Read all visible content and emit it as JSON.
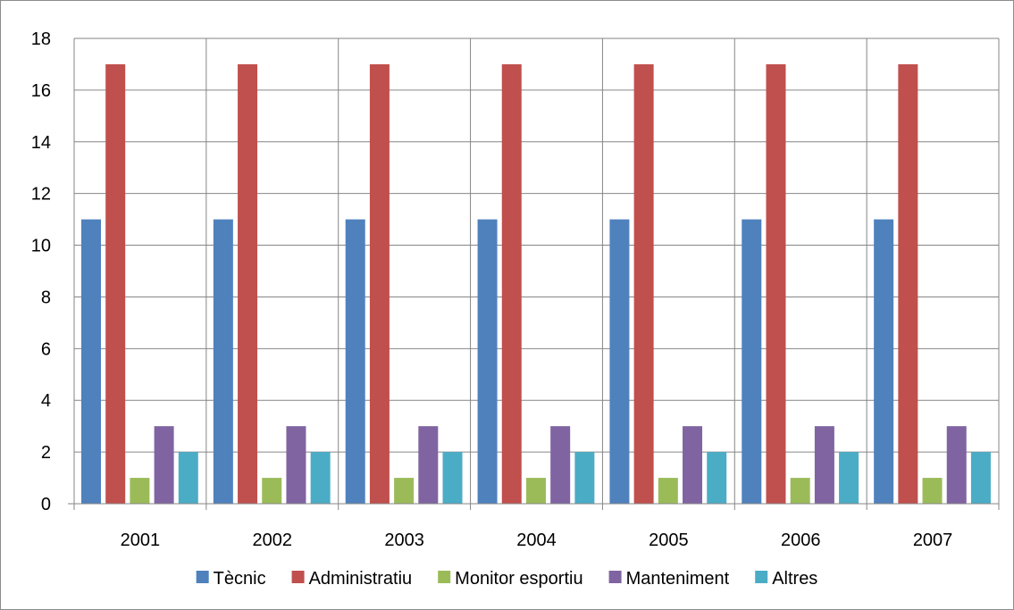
{
  "chart_data": {
    "type": "bar",
    "title": "",
    "xlabel": "",
    "ylabel": "",
    "categories": [
      "2001",
      "2002",
      "2003",
      "2004",
      "2005",
      "2006",
      "2007"
    ],
    "ylim": [
      0,
      18
    ],
    "yticks": [
      0,
      2,
      4,
      6,
      8,
      10,
      12,
      14,
      16,
      18
    ],
    "grid": true,
    "legend_position": "bottom",
    "series": [
      {
        "name": "Tècnic",
        "color": "#4f81bd",
        "values": [
          11,
          11,
          11,
          11,
          11,
          11,
          11
        ]
      },
      {
        "name": "Administratiu",
        "color": "#c0504d",
        "values": [
          17,
          17,
          17,
          17,
          17,
          17,
          17
        ]
      },
      {
        "name": "Monitor esportiu",
        "color": "#9bbb59",
        "values": [
          1,
          1,
          1,
          1,
          1,
          1,
          1
        ]
      },
      {
        "name": "Manteniment",
        "color": "#8064a2",
        "values": [
          3,
          3,
          3,
          3,
          3,
          3,
          3
        ]
      },
      {
        "name": "Altres",
        "color": "#4bacc6",
        "values": [
          2,
          2,
          2,
          2,
          2,
          2,
          2
        ]
      }
    ]
  }
}
